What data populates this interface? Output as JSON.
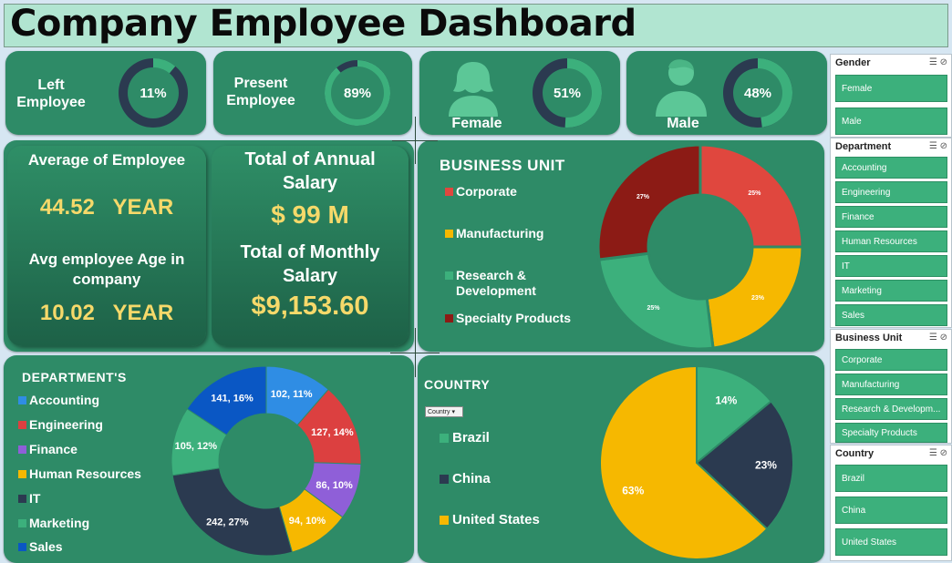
{
  "title": "Company Employee Dashboard",
  "kpis": [
    {
      "label1": "Left",
      "label2": "Employee",
      "pct": "11%",
      "value": 11
    },
    {
      "label1": "Present",
      "label2": "Employee",
      "pct": "89%",
      "value": 89
    },
    {
      "label1": "Female",
      "label2": "",
      "pct": "51%",
      "value": 51
    },
    {
      "label1": "Male",
      "label2": "",
      "pct": "48%",
      "value": 48
    }
  ],
  "stats": {
    "avg_emp_title": "Average of Employee",
    "avg_emp_value": "44.52   YEAR",
    "avg_age_title1": "Avg employee Age in",
    "avg_age_title2": "company",
    "avg_age_value": "10.02   YEAR",
    "annual_title1": "Total of Annual",
    "annual_title2": "Salary",
    "annual_value": "$ 99 M",
    "monthly_title1": "Total of Monthly",
    "monthly_title2": "Salary",
    "monthly_value": "$9,153.60"
  },
  "colors": {
    "panel": "#2e8b67",
    "corporate": "#e0473e",
    "manufacturing": "#f6b800",
    "rnd": "#3cb07c",
    "specialty": "#8c1b15",
    "accounting": "#2f8de4",
    "engineering": "#dc4040",
    "finance": "#8f5fd8",
    "hr": "#f6b800",
    "it": "#2b3a50",
    "marketing": "#3cb07c",
    "sales": "#0a57c4",
    "brazil": "#3cb07c",
    "china": "#2b3a50",
    "us": "#f6b800"
  },
  "chart_data": [
    {
      "type": "pie",
      "title": "BUSINESS UNIT",
      "categories": [
        "Corporate",
        "Manufacturing",
        "Research & Development",
        "Specialty Products"
      ],
      "values": [
        25,
        23,
        25,
        27
      ],
      "labels": [
        "25%",
        "23%",
        "25%",
        "27%"
      ]
    },
    {
      "type": "pie",
      "title": "DEPARTMENT'S",
      "categories": [
        "Accounting",
        "Engineering",
        "Finance",
        "Human Resources",
        "IT",
        "Marketing",
        "Sales"
      ],
      "values": [
        102,
        127,
        86,
        94,
        242,
        105,
        141
      ],
      "labels": [
        "102, 11%",
        "127, 14%",
        "86, 10%",
        "94, 10%",
        "242, 27%",
        "105, 12%",
        "141, 16%"
      ]
    },
    {
      "type": "pie",
      "title": "COUNTRY",
      "categories": [
        "Brazil",
        "China",
        "United States"
      ],
      "values": [
        14,
        23,
        63
      ],
      "labels": [
        "14%",
        "23%",
        "63%"
      ]
    }
  ],
  "country_filter": "Country",
  "bu_legend": [
    "Corporate",
    "Manufacturing",
    "Research &",
    "Development",
    "Specialty Products"
  ],
  "slicers": {
    "gender": {
      "title": "Gender",
      "items": [
        "Female",
        "Male"
      ]
    },
    "department": {
      "title": "Department",
      "items": [
        "Accounting",
        "Engineering",
        "Finance",
        "Human Resources",
        "IT",
        "Marketing",
        "Sales"
      ]
    },
    "business_unit": {
      "title": "Business Unit",
      "items": [
        "Corporate",
        "Manufacturing",
        "Research & Developm...",
        "Specialty Products"
      ]
    },
    "country": {
      "title": "Country",
      "items": [
        "Brazil",
        "China",
        "United States"
      ]
    }
  }
}
